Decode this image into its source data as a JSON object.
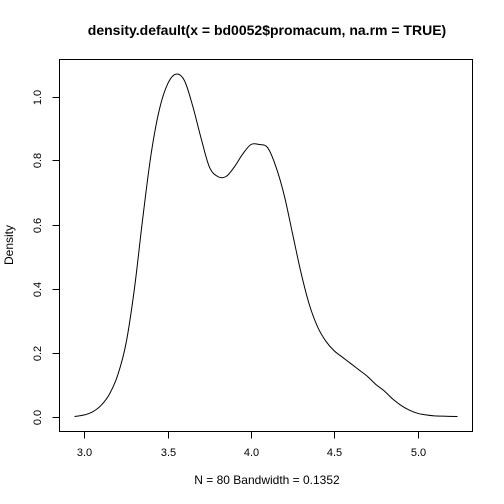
{
  "chart_data": {
    "type": "line",
    "title": "density.default(x = bd0052$promacum, na.rm = TRUE)",
    "xlabel": "N = 80   Bandwidth = 0.1352",
    "ylabel": "Density",
    "xlim": [
      2.94,
      5.24
    ],
    "ylim": [
      0,
      1.075
    ],
    "xticks": [
      3.0,
      3.5,
      4.0,
      4.5,
      5.0
    ],
    "xtick_labels": [
      "3.0",
      "3.5",
      "4.0",
      "4.5",
      "5.0"
    ],
    "yticks": [
      0.0,
      0.2,
      0.4,
      0.6,
      0.8,
      1.0
    ],
    "ytick_labels": [
      "0.0",
      "0.2",
      "0.4",
      "0.6",
      "0.8",
      "1.0"
    ],
    "grid": false,
    "legend": "none",
    "series": [
      {
        "x": [
          2.94,
          3.0,
          3.05,
          3.1,
          3.15,
          3.2,
          3.25,
          3.3,
          3.35,
          3.4,
          3.45,
          3.5,
          3.55,
          3.6,
          3.65,
          3.7,
          3.75,
          3.8,
          3.85,
          3.9,
          3.95,
          4.0,
          4.05,
          4.1,
          4.15,
          4.2,
          4.25,
          4.3,
          4.35,
          4.4,
          4.45,
          4.5,
          4.55,
          4.6,
          4.65,
          4.7,
          4.75,
          4.8,
          4.85,
          4.9,
          4.95,
          5.0,
          5.05,
          5.1,
          5.15,
          5.24
        ],
        "y": [
          0.0,
          0.005,
          0.015,
          0.035,
          0.07,
          0.13,
          0.23,
          0.4,
          0.62,
          0.82,
          0.96,
          1.04,
          1.07,
          1.05,
          0.97,
          0.87,
          0.78,
          0.75,
          0.75,
          0.78,
          0.82,
          0.85,
          0.85,
          0.84,
          0.78,
          0.69,
          0.57,
          0.45,
          0.35,
          0.28,
          0.235,
          0.205,
          0.185,
          0.165,
          0.145,
          0.125,
          0.1,
          0.08,
          0.055,
          0.035,
          0.02,
          0.01,
          0.005,
          0.002,
          0.001,
          0.0
        ]
      }
    ]
  }
}
